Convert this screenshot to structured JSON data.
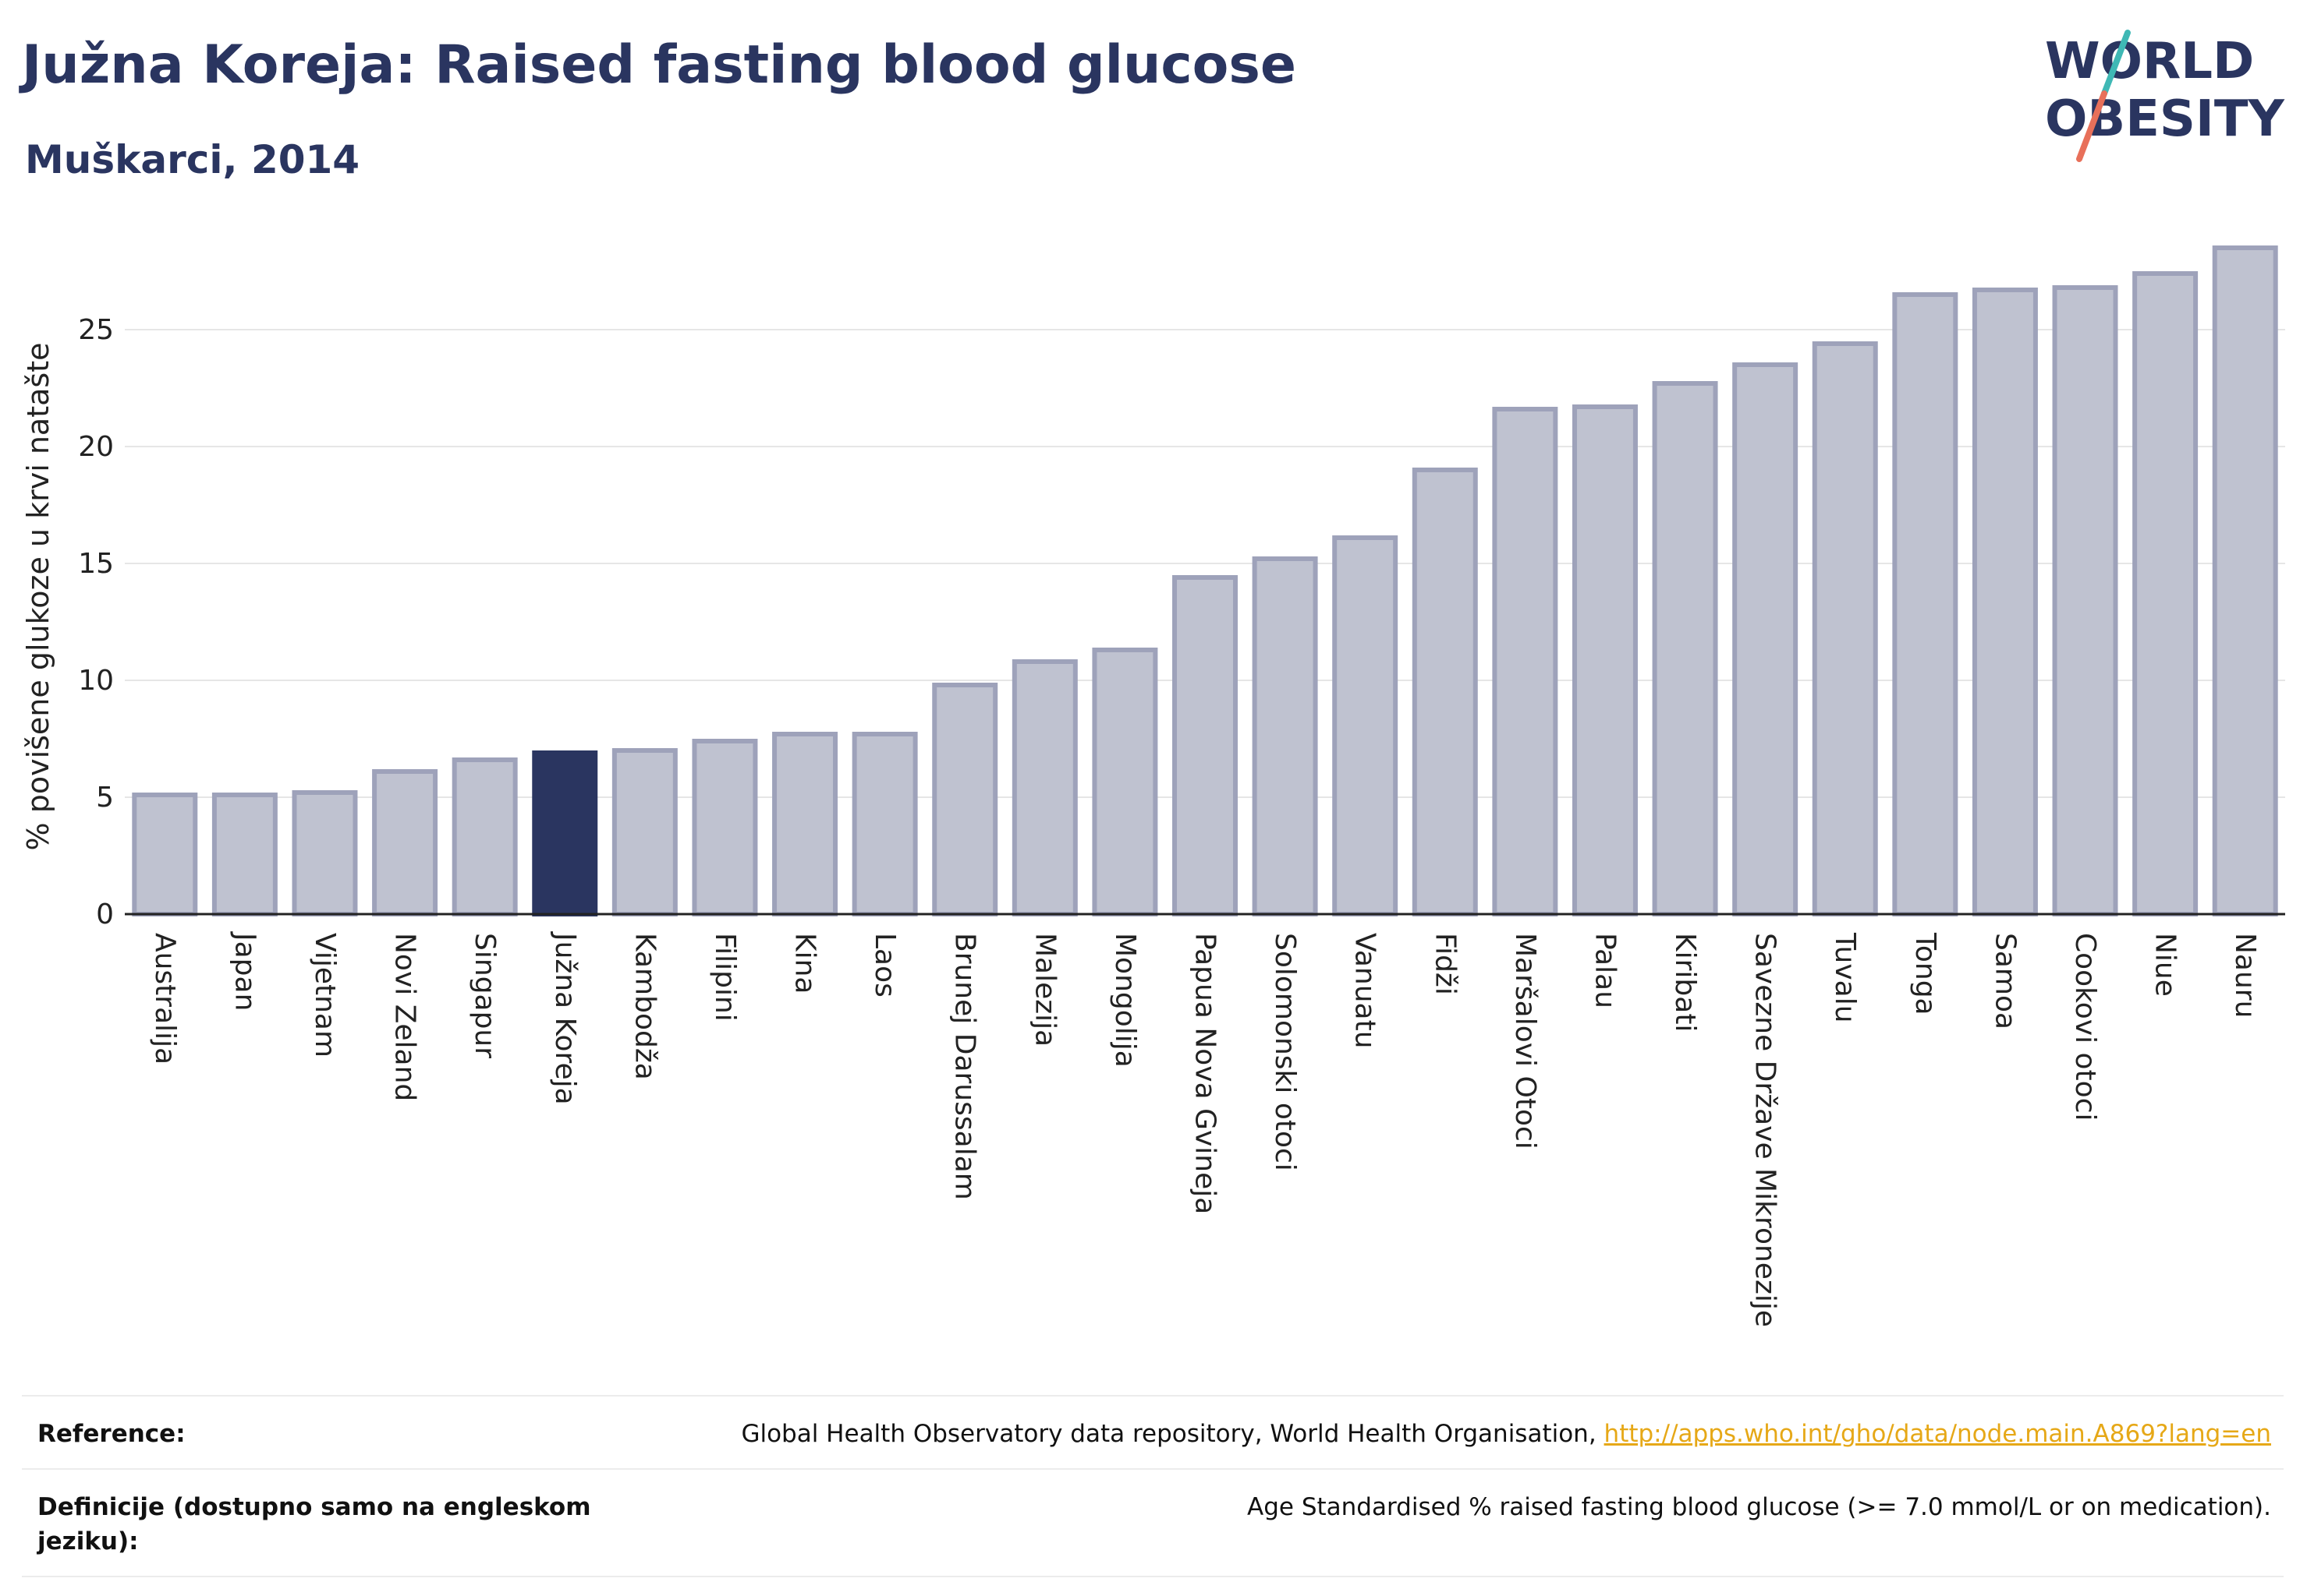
{
  "header": {
    "title": "Južna Koreja: Raised fasting blood glucose",
    "subtitle": "Muškarci, 2014"
  },
  "logo": {
    "line1": "WORLD",
    "line2": "OBESITY",
    "colors": {
      "text": "#2a3560",
      "slash_top": "#3fb8b5",
      "slash_bottom": "#e8705a"
    }
  },
  "colors": {
    "bar_fill": "#bfc2d0",
    "bar_stroke": "#9ea2ba",
    "highlight_fill": "#2a3560",
    "grid": "#e6e6e6",
    "axis": "#222222"
  },
  "chart_data": {
    "type": "bar",
    "ylabel": "% povišene glukoze u krvi natašte",
    "xlabel": "",
    "ylim": [
      0,
      28.5
    ],
    "yticks": [
      0,
      5,
      10,
      15,
      20,
      25
    ],
    "grid": true,
    "highlight": "Južna Koreja",
    "categories": [
      "Australija",
      "Japan",
      "Vijetnam",
      "Novi Zeland",
      "Singapur",
      "Južna Koreja",
      "Kambodža",
      "Filipini",
      "Kina",
      "Laos",
      "Brunej Darussalam",
      "Malezija",
      "Mongolija",
      "Papua Nova Gvineja",
      "Solomonski otoci",
      "Vanuatu",
      "Fidži",
      "Maršalovi Otoci",
      "Palau",
      "Kiribati",
      "Savezne Države Mikronezije",
      "Tuvalu",
      "Tonga",
      "Samoa",
      "Cookovi otoci",
      "Niue",
      "Nauru"
    ],
    "values": [
      5.1,
      5.1,
      5.2,
      6.1,
      6.6,
      6.9,
      7.0,
      7.4,
      7.7,
      7.7,
      9.8,
      10.8,
      11.3,
      14.4,
      15.2,
      16.1,
      19.0,
      21.6,
      21.7,
      22.7,
      23.5,
      24.4,
      26.5,
      26.7,
      26.8,
      27.4,
      28.5
    ]
  },
  "footer": {
    "reference_label": "Reference:",
    "reference_text": "Global Health Observatory data repository, World Health Organisation, ",
    "reference_link": "http://apps.who.int/gho/data/node.main.A869?lang=en",
    "definition_label": "Definicije (dostupno samo na engleskom jeziku):",
    "definition_text": "Age Standardised % raised fasting blood glucose (>= 7.0 mmol/L or on medication)."
  }
}
